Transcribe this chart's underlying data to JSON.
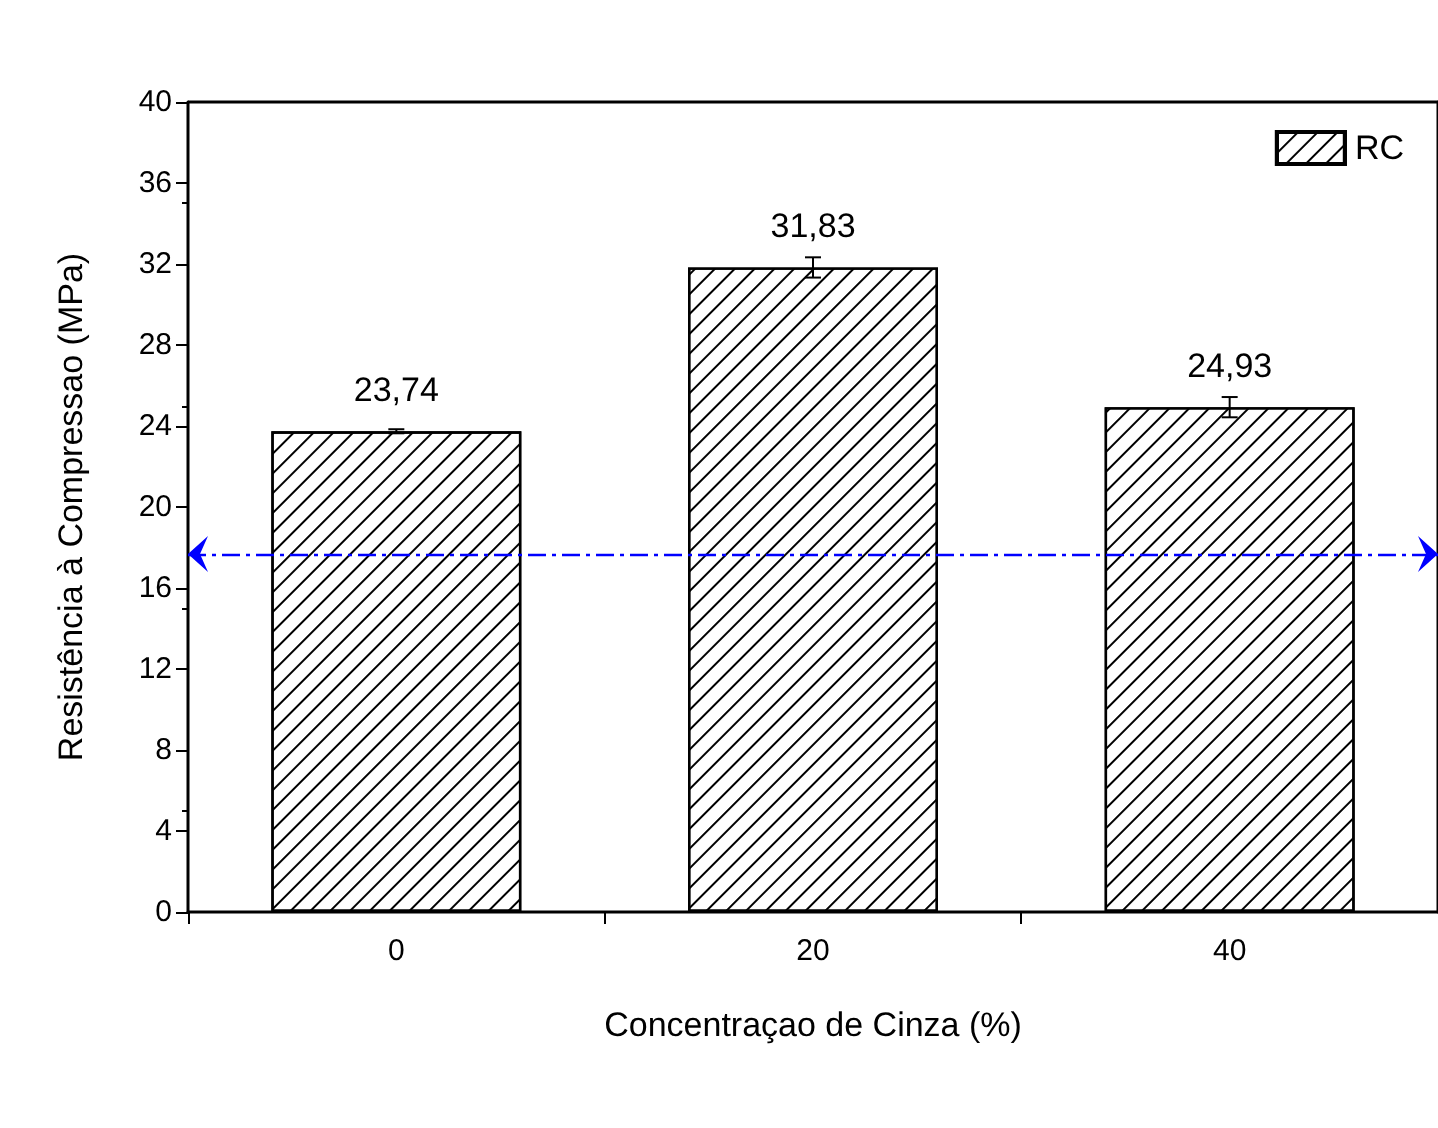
{
  "chart_data": {
    "type": "bar",
    "xlabel": "Concentraçao de Cinza (%)",
    "ylabel": "Resistência à Compressao (MPa)",
    "categories": [
      "0",
      "20",
      "40"
    ],
    "series": [
      {
        "name": "RC",
        "color": "#ffffff",
        "values": [
          23.74,
          31.83,
          24.93
        ],
        "errors": [
          0.1,
          0.5,
          0.5
        ],
        "value_labels": [
          "23,74",
          "31,83",
          "24,93"
        ]
      }
    ],
    "ylim": [
      0,
      40
    ],
    "yticks": [
      0,
      4,
      8,
      12,
      16,
      20,
      24,
      28,
      32,
      36,
      40
    ],
    "legend": "top right",
    "grid": false,
    "ref_lines": [
      {
        "axis": "y",
        "value": 17.7,
        "color": "#0000ff",
        "line_style": "dashdot"
      }
    ]
  }
}
